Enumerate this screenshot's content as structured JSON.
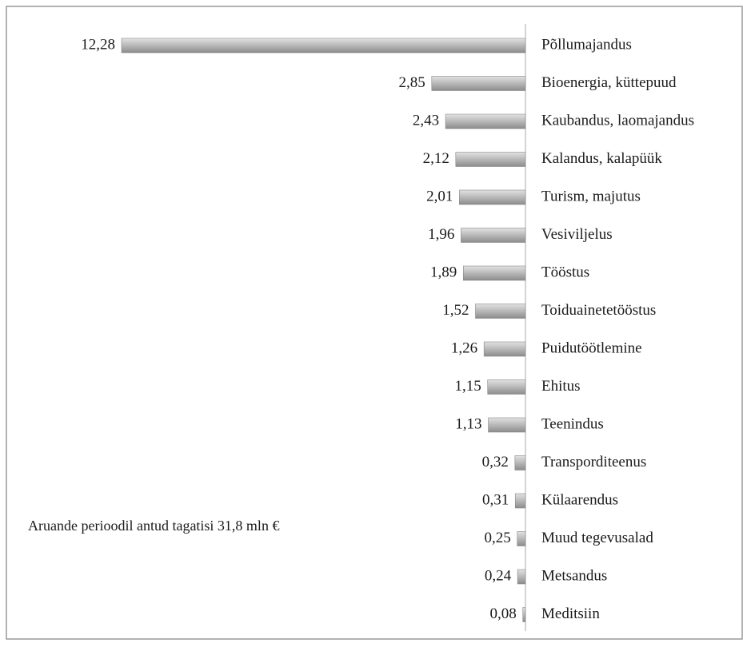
{
  "chart_data": {
    "type": "bar",
    "orientation": "horizontal",
    "categories": [
      "Põllumajandus",
      "Bioenergia, küttepuud",
      "Kaubandus, laomajandus",
      "Kalandus, kalapüük",
      "Turism, majutus",
      "Vesiviljelus",
      "Tööstus",
      "Toiduainetetööstus",
      "Puidutöötlemine",
      "Ehitus",
      "Teenindus",
      "Transporditeenus",
      "Külaarendus",
      "Muud tegevusalad",
      "Metsandus",
      "Meditsiin"
    ],
    "values": [
      12.28,
      2.85,
      2.43,
      2.12,
      2.01,
      1.96,
      1.89,
      1.52,
      1.26,
      1.15,
      1.13,
      0.32,
      0.31,
      0.25,
      0.24,
      0.08
    ],
    "value_labels": [
      "12,28",
      "2,85",
      "2,43",
      "2,12",
      "2,01",
      "1,96",
      "1,89",
      "1,52",
      "1,26",
      "1,15",
      "1,13",
      "0,32",
      "0,31",
      "0,25",
      "0,24",
      "0,08"
    ],
    "color": "#a9a9a9",
    "annotation": "Aruande perioodil antud tagatisi 31,8 mln €"
  }
}
